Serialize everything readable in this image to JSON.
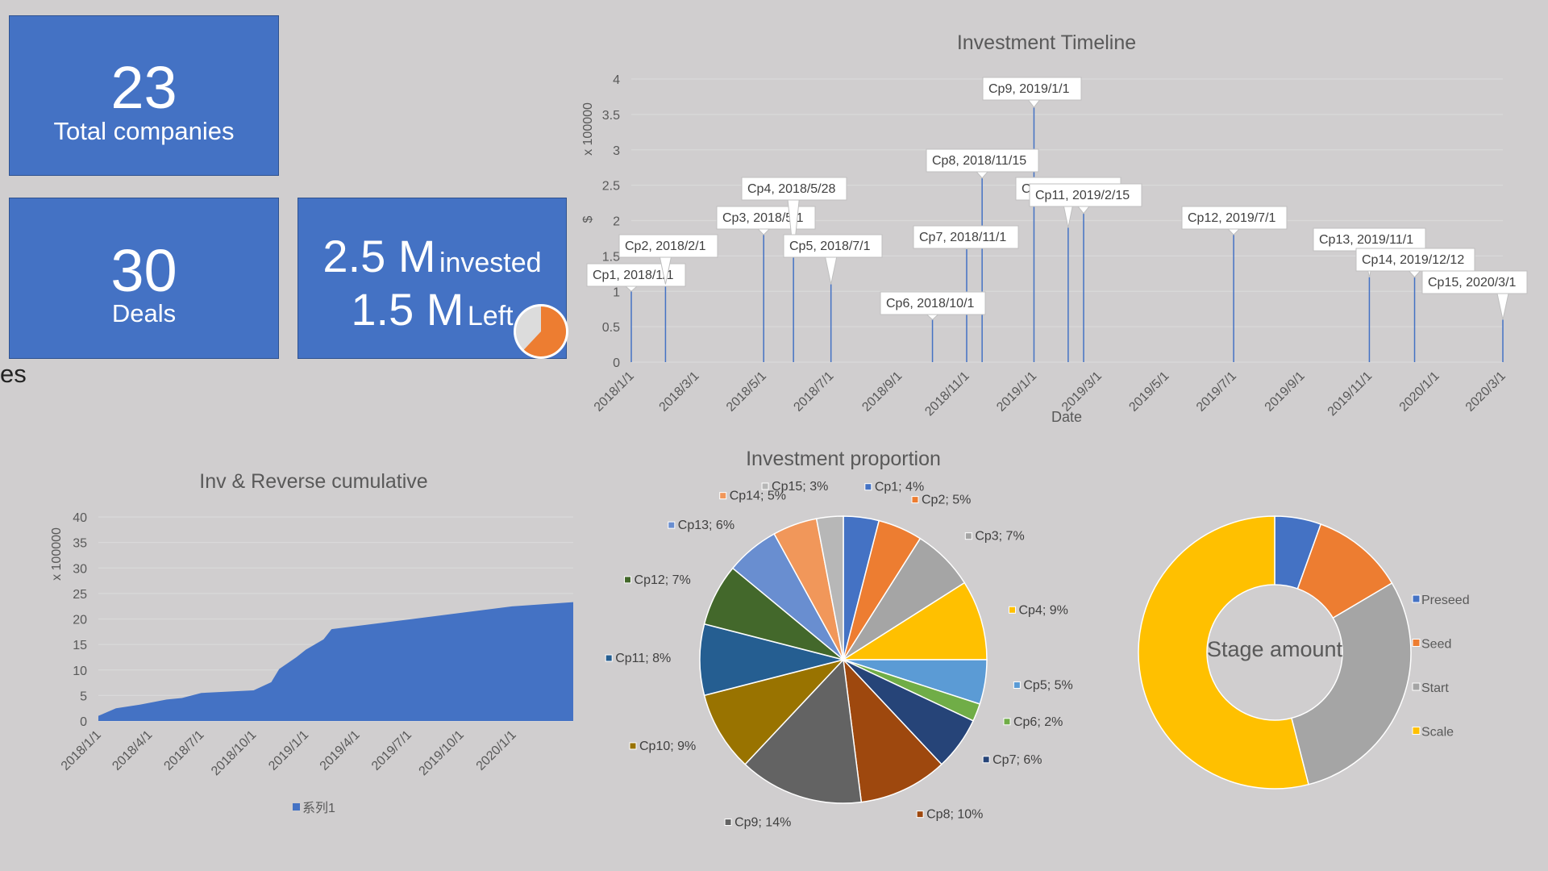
{
  "kpis": {
    "total_companies": {
      "value": "23",
      "label": "Total companies"
    },
    "deals": {
      "value": "30",
      "label": "Deals"
    },
    "invested": {
      "amount": "2.5 M",
      "amount_label": "invested",
      "left": "1.5 M",
      "left_label": "Left",
      "pie_left_fraction": 0.62
    },
    "fragment": "es"
  },
  "colors": {
    "kpi_bg": "#4472c4",
    "accent_orange": "#ed7d31",
    "grid": "#d9d9d9"
  },
  "chart_data": [
    {
      "id": "timeline",
      "type": "bar",
      "title": "Investment Timeline",
      "xlabel": "Date",
      "ylabel": "$",
      "yunit": "x 100000",
      "ylim": [
        0,
        4
      ],
      "yticks": [
        "0",
        "0.5",
        "1",
        "1.5",
        "2",
        "2.5",
        "3",
        "3.5",
        "4"
      ],
      "xrange": [
        "2018-01-01",
        "2020-03-01"
      ],
      "xticks": [
        "2018/1/1",
        "2018/3/1",
        "2018/5/1",
        "2018/7/1",
        "2018/9/1",
        "2018/11/1",
        "2019/1/1",
        "2019/3/1",
        "2019/5/1",
        "2019/7/1",
        "2019/9/1",
        "2019/11/1",
        "2020/1/1",
        "2020/3/1"
      ],
      "grid": true,
      "color": "#4472c4",
      "points": [
        {
          "label": "Cp1, 2018/1/1",
          "date": "2018-01-01",
          "value": 1.0
        },
        {
          "label": "Cp2, 2018/2/1",
          "date": "2018-02-01",
          "value": 1.1
        },
        {
          "label": "Cp3, 2018/5/1",
          "date": "2018-05-01",
          "value": 1.8
        },
        {
          "label": "Cp4, 2018/5/28",
          "date": "2018-05-28",
          "value": 1.5
        },
        {
          "label": "Cp5, 2018/7/1",
          "date": "2018-07-01",
          "value": 1.1
        },
        {
          "label": "Cp6, 2018/10/1",
          "date": "2018-10-01",
          "value": 0.6
        },
        {
          "label": "Cp7, 2018/11/1",
          "date": "2018-11-01",
          "value": 1.6
        },
        {
          "label": "Cp8, 2018/11/15",
          "date": "2018-11-15",
          "value": 2.6
        },
        {
          "label": "Cp9, 2019/1/1",
          "date": "2019-01-01",
          "value": 3.6
        },
        {
          "label": "Cp10, 2019/2/1",
          "date": "2019-02-01",
          "value": 1.9
        },
        {
          "label": "Cp11, 2019/2/15",
          "date": "2019-02-15",
          "value": 2.1
        },
        {
          "label": "Cp12, 2019/7/1",
          "date": "2019-07-01",
          "value": 1.8
        },
        {
          "label": "Cp13, 2019/11/1",
          "date": "2019-11-01",
          "value": 1.2
        },
        {
          "label": "Cp14, 2019/12/12",
          "date": "2019-12-12",
          "value": 1.2
        },
        {
          "label": "Cp15, 2020/3/1",
          "date": "2020-03-01",
          "value": 0.6
        }
      ]
    },
    {
      "id": "cumulative",
      "type": "area",
      "title": "Inv & Reverse cumulative",
      "yunit": "x 100000",
      "ylim": [
        0,
        40
      ],
      "yticks": [
        "0",
        "5",
        "10",
        "15",
        "20",
        "25",
        "30",
        "35",
        "40"
      ],
      "xrange": [
        "2018-01-01",
        "2020-04-15"
      ],
      "xticks": [
        "2018/1/1",
        "2018/4/1",
        "2018/7/1",
        "2018/10/1",
        "2019/1/1",
        "2019/4/1",
        "2019/7/1",
        "2019/10/1",
        "2020/1/1"
      ],
      "grid": true,
      "legend_position": "bottom",
      "color": "#4472c4",
      "series": [
        {
          "name": "系列1",
          "x": [
            "2018-01-01",
            "2018-02-01",
            "2018-03-15",
            "2018-05-01",
            "2018-05-28",
            "2018-07-01",
            "2018-10-01",
            "2018-11-01",
            "2018-11-15",
            "2018-12-15",
            "2019-01-01",
            "2019-02-01",
            "2019-02-15",
            "2020-01-01",
            "2020-04-15"
          ],
          "y": [
            1.0,
            2.5,
            3.2,
            4.2,
            4.5,
            5.5,
            6.0,
            7.6,
            10.2,
            12.5,
            14.0,
            16.0,
            18.0,
            22.5,
            23.3
          ]
        }
      ]
    },
    {
      "id": "proportion",
      "type": "pie",
      "title": "Investment proportion",
      "slices": [
        {
          "name": "Cp1",
          "pct": 4,
          "label": "Cp1; 4%",
          "color": "#4472c4"
        },
        {
          "name": "Cp2",
          "pct": 5,
          "label": "Cp2; 5%",
          "color": "#ed7d31"
        },
        {
          "name": "Cp3",
          "pct": 7,
          "label": "Cp3; 7%",
          "color": "#a5a5a5"
        },
        {
          "name": "Cp4",
          "pct": 9,
          "label": "Cp4; 9%",
          "color": "#ffc000"
        },
        {
          "name": "Cp5",
          "pct": 5,
          "label": "Cp5; 5%",
          "color": "#5b9bd5"
        },
        {
          "name": "Cp6",
          "pct": 2,
          "label": "Cp6; 2%",
          "color": "#70ad47"
        },
        {
          "name": "Cp7",
          "pct": 6,
          "label": "Cp7; 6%",
          "color": "#264478"
        },
        {
          "name": "Cp8",
          "pct": 10,
          "label": "Cp8; 10%",
          "color": "#9e480e"
        },
        {
          "name": "Cp9",
          "pct": 14,
          "label": "Cp9; 14%",
          "color": "#636363"
        },
        {
          "name": "Cp10",
          "pct": 9,
          "label": "Cp10; 9%",
          "color": "#997300"
        },
        {
          "name": "Cp11",
          "pct": 8,
          "label": "Cp11; 8%",
          "color": "#255e91"
        },
        {
          "name": "Cp12",
          "pct": 7,
          "label": "Cp12; 7%",
          "color": "#43682b"
        },
        {
          "name": "Cp13",
          "pct": 6,
          "label": "Cp13; 6%",
          "color": "#698ed0"
        },
        {
          "name": "Cp14",
          "pct": 5,
          "label": "Cp14; 5%",
          "color": "#f1975a"
        },
        {
          "name": "Cp15",
          "pct": 3,
          "label": "Cp15; 3%",
          "color": "#b7b7b7"
        }
      ]
    },
    {
      "id": "stage",
      "type": "pie",
      "subtype": "doughnut",
      "title": "Stage amount",
      "legend_position": "right",
      "slices": [
        {
          "name": "Preseed",
          "pct": 5.5,
          "color": "#4472c4"
        },
        {
          "name": "Seed",
          "pct": 11,
          "color": "#ed7d31"
        },
        {
          "name": "Start",
          "pct": 29.5,
          "color": "#a5a5a5"
        },
        {
          "name": "Scale",
          "pct": 54,
          "color": "#ffc000"
        }
      ]
    }
  ]
}
